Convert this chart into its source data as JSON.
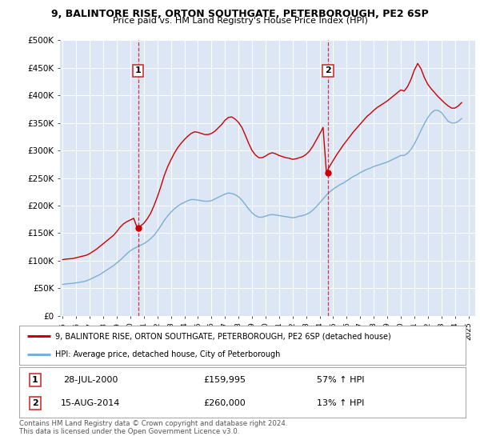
{
  "title_line1": "9, BALINTORE RISE, ORTON SOUTHGATE, PETERBOROUGH, PE2 6SP",
  "title_line2": "Price paid vs. HM Land Registry's House Price Index (HPI)",
  "ylabel_ticks": [
    "£0",
    "£50K",
    "£100K",
    "£150K",
    "£200K",
    "£250K",
    "£300K",
    "£350K",
    "£400K",
    "£450K",
    "£500K"
  ],
  "ytick_values": [
    0,
    50000,
    100000,
    150000,
    200000,
    250000,
    300000,
    350000,
    400000,
    450000,
    500000
  ],
  "xlim_start": 1994.8,
  "xlim_end": 2025.5,
  "ylim_min": 0,
  "ylim_max": 500000,
  "background_color": "#dce6f5",
  "fig_bg_color": "#ffffff",
  "legend_line1": "9, BALINTORE RISE, ORTON SOUTHGATE, PETERBOROUGH, PE2 6SP (detached house)",
  "legend_line2": "HPI: Average price, detached house, City of Peterborough",
  "red_line_color": "#cc0000",
  "blue_line_color": "#7bafd4",
  "marker1_date": 2000.57,
  "marker1_price": 159995,
  "marker1_label": "1",
  "marker1_table_date": "28-JUL-2000",
  "marker1_table_price": "£159,995",
  "marker1_table_hpi": "57% ↑ HPI",
  "marker2_date": 2014.62,
  "marker2_price": 260000,
  "marker2_label": "2",
  "marker2_table_date": "15-AUG-2014",
  "marker2_table_price": "£260,000",
  "marker2_table_hpi": "13% ↑ HPI",
  "footer": "Contains HM Land Registry data © Crown copyright and database right 2024.\nThis data is licensed under the Open Government Licence v3.0.",
  "hpi_data_x": [
    1995.0,
    1995.25,
    1995.5,
    1995.75,
    1996.0,
    1996.25,
    1996.5,
    1996.75,
    1997.0,
    1997.25,
    1997.5,
    1997.75,
    1998.0,
    1998.25,
    1998.5,
    1998.75,
    1999.0,
    1999.25,
    1999.5,
    1999.75,
    2000.0,
    2000.25,
    2000.5,
    2000.75,
    2001.0,
    2001.25,
    2001.5,
    2001.75,
    2002.0,
    2002.25,
    2002.5,
    2002.75,
    2003.0,
    2003.25,
    2003.5,
    2003.75,
    2004.0,
    2004.25,
    2004.5,
    2004.75,
    2005.0,
    2005.25,
    2005.5,
    2005.75,
    2006.0,
    2006.25,
    2006.5,
    2006.75,
    2007.0,
    2007.25,
    2007.5,
    2007.75,
    2008.0,
    2008.25,
    2008.5,
    2008.75,
    2009.0,
    2009.25,
    2009.5,
    2009.75,
    2010.0,
    2010.25,
    2010.5,
    2010.75,
    2011.0,
    2011.25,
    2011.5,
    2011.75,
    2012.0,
    2012.25,
    2012.5,
    2012.75,
    2013.0,
    2013.25,
    2013.5,
    2013.75,
    2014.0,
    2014.25,
    2014.5,
    2014.75,
    2015.0,
    2015.25,
    2015.5,
    2015.75,
    2016.0,
    2016.25,
    2016.5,
    2016.75,
    2017.0,
    2017.25,
    2017.5,
    2017.75,
    2018.0,
    2018.25,
    2018.5,
    2018.75,
    2019.0,
    2019.25,
    2019.5,
    2019.75,
    2020.0,
    2020.25,
    2020.5,
    2020.75,
    2021.0,
    2021.25,
    2021.5,
    2021.75,
    2022.0,
    2022.25,
    2022.5,
    2022.75,
    2023.0,
    2023.25,
    2023.5,
    2023.75,
    2024.0,
    2024.25,
    2024.5
  ],
  "hpi_data_y": [
    57000,
    58000,
    58500,
    59000,
    60000,
    61000,
    62000,
    63500,
    66000,
    69000,
    72000,
    75000,
    79000,
    83000,
    87000,
    91000,
    96000,
    101000,
    107000,
    113000,
    118000,
    122000,
    125000,
    128000,
    131000,
    135000,
    140000,
    146000,
    154000,
    163000,
    173000,
    181000,
    188000,
    194000,
    199000,
    203000,
    206000,
    209000,
    211000,
    211000,
    210000,
    209000,
    208000,
    208000,
    209000,
    212000,
    215000,
    218000,
    221000,
    223000,
    222000,
    220000,
    216000,
    210000,
    202000,
    194000,
    187000,
    182000,
    179000,
    179000,
    181000,
    183000,
    184000,
    183000,
    182000,
    181000,
    180000,
    179000,
    178000,
    179000,
    181000,
    182000,
    184000,
    187000,
    192000,
    198000,
    205000,
    212000,
    219000,
    225000,
    230000,
    234000,
    238000,
    241000,
    245000,
    249000,
    253000,
    256000,
    260000,
    263000,
    266000,
    268000,
    271000,
    273000,
    275000,
    277000,
    279000,
    282000,
    285000,
    288000,
    291000,
    291000,
    295000,
    302000,
    312000,
    324000,
    337000,
    349000,
    360000,
    368000,
    373000,
    373000,
    369000,
    361000,
    353000,
    350000,
    350000,
    353000,
    358000
  ],
  "red_data_x": [
    1995.0,
    1995.25,
    1995.5,
    1995.75,
    1996.0,
    1996.25,
    1996.5,
    1996.75,
    1997.0,
    1997.25,
    1997.5,
    1997.75,
    1998.0,
    1998.25,
    1998.5,
    1998.75,
    1999.0,
    1999.25,
    1999.5,
    1999.75,
    2000.0,
    2000.25,
    2000.5,
    2000.75,
    2001.0,
    2001.25,
    2001.5,
    2001.75,
    2002.0,
    2002.25,
    2002.5,
    2002.75,
    2003.0,
    2003.25,
    2003.5,
    2003.75,
    2004.0,
    2004.25,
    2004.5,
    2004.75,
    2005.0,
    2005.25,
    2005.5,
    2005.75,
    2006.0,
    2006.25,
    2006.5,
    2006.75,
    2007.0,
    2007.25,
    2007.5,
    2007.75,
    2008.0,
    2008.25,
    2008.5,
    2008.75,
    2009.0,
    2009.25,
    2009.5,
    2009.75,
    2010.0,
    2010.25,
    2010.5,
    2010.75,
    2011.0,
    2011.25,
    2011.5,
    2011.75,
    2012.0,
    2012.25,
    2012.5,
    2012.75,
    2013.0,
    2013.25,
    2013.5,
    2013.75,
    2014.0,
    2014.25,
    2014.5,
    2014.75,
    2015.0,
    2015.25,
    2015.5,
    2015.75,
    2016.0,
    2016.25,
    2016.5,
    2016.75,
    2017.0,
    2017.25,
    2017.5,
    2017.75,
    2018.0,
    2018.25,
    2018.5,
    2018.75,
    2019.0,
    2019.25,
    2019.5,
    2019.75,
    2020.0,
    2020.25,
    2020.5,
    2020.75,
    2021.0,
    2021.25,
    2021.5,
    2021.75,
    2022.0,
    2022.25,
    2022.5,
    2022.75,
    2023.0,
    2023.25,
    2023.5,
    2023.75,
    2024.0,
    2024.25,
    2024.5
  ],
  "red_data_y": [
    102000,
    103000,
    103500,
    104000,
    105500,
    107000,
    108500,
    110000,
    113000,
    117000,
    121000,
    126000,
    131000,
    136000,
    141000,
    146000,
    153000,
    161000,
    167000,
    171000,
    174000,
    177000,
    160000,
    163000,
    168000,
    176000,
    186000,
    200000,
    216000,
    234000,
    254000,
    270000,
    283000,
    295000,
    305000,
    313000,
    320000,
    326000,
    331000,
    334000,
    333000,
    331000,
    329000,
    329000,
    331000,
    335000,
    341000,
    347000,
    355000,
    360000,
    361000,
    357000,
    351000,
    342000,
    328000,
    313000,
    300000,
    292000,
    287000,
    287000,
    290000,
    294000,
    296000,
    294000,
    291000,
    289000,
    287000,
    286000,
    284000,
    285000,
    287000,
    289000,
    293000,
    299000,
    308000,
    319000,
    330000,
    342000,
    260000,
    272000,
    282000,
    292000,
    301000,
    310000,
    318000,
    326000,
    334000,
    341000,
    348000,
    355000,
    362000,
    367000,
    373000,
    378000,
    382000,
    386000,
    390000,
    395000,
    400000,
    405000,
    410000,
    408000,
    416000,
    429000,
    446000,
    458000,
    448000,
    432000,
    420000,
    412000,
    405000,
    398000,
    392000,
    386000,
    381000,
    377000,
    377000,
    381000,
    387000
  ]
}
